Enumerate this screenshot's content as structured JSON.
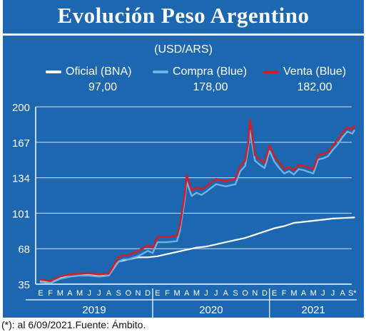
{
  "title": "Evolución Peso Argentino",
  "units": "(USD/ARS)",
  "footnote": "(*): al 6/09/2021.Fuente: Ámbito.",
  "legend": [
    {
      "label": "Oficial (BNA)",
      "value": "97,00",
      "color": "#ffffff"
    },
    {
      "label": "Compra (Blue)",
      "value": "178,00",
      "color": "#6cb3e4"
    },
    {
      "label": "Venta (Blue)",
      "value": "182,00",
      "color": "#d21f26"
    }
  ],
  "chart_data": {
    "type": "line",
    "x_unit": "month",
    "y_ticks": [
      "200",
      "167",
      "134",
      "101",
      "68",
      "35"
    ],
    "y_tick_values": [
      200,
      167,
      134,
      101,
      68,
      35
    ],
    "ylim": [
      35,
      200
    ],
    "grid": true,
    "month_labels": [
      "E",
      "F",
      "M",
      "A",
      "M",
      "J",
      "J",
      "A",
      "S",
      "O",
      "N",
      "D",
      "E",
      "F",
      "M",
      "A",
      "M",
      "J",
      "J",
      "A",
      "S",
      "O",
      "N",
      "D",
      "E",
      "F",
      "M",
      "A",
      "M",
      "J",
      "J",
      "A",
      "S*"
    ],
    "years": [
      "2019",
      "2020",
      "2021"
    ],
    "series": [
      {
        "name": "Oficial (BNA)",
        "color": "#ffffff",
        "x": [
          0,
          1,
          2,
          3,
          4,
          5,
          6,
          7,
          8,
          9,
          10,
          11,
          12,
          13,
          14,
          15,
          16,
          17,
          18,
          19,
          20,
          21,
          22,
          23,
          24,
          25,
          26,
          27,
          28,
          29,
          30,
          31,
          32.2
        ],
        "y": [
          38,
          38,
          41,
          44,
          45,
          44,
          43,
          45,
          56,
          58,
          60,
          60,
          61,
          63,
          65,
          67,
          69,
          70,
          72,
          74,
          76,
          78,
          81,
          84,
          87,
          89,
          92,
          93,
          94,
          95,
          96,
          96.5,
          97
        ]
      },
      {
        "name": "Compra (Blue)",
        "color": "#6cb3e4",
        "x": [
          0,
          1,
          2,
          3,
          4,
          5,
          6,
          7,
          8,
          8.5,
          9,
          10,
          11,
          11.5,
          12,
          13,
          14,
          14.3,
          14.8,
          15,
          15.5,
          16,
          16.5,
          17,
          18,
          19,
          20,
          20.5,
          21,
          21.3,
          21.5,
          22,
          22.5,
          23,
          23.5,
          24,
          24.5,
          25,
          25.5,
          26,
          26.5,
          27,
          28,
          28.5,
          29,
          29.5,
          30,
          30.5,
          31,
          31.5,
          32,
          32.2
        ],
        "y": [
          37,
          36,
          40,
          42,
          43,
          43,
          42,
          43,
          56,
          58,
          58,
          61,
          66,
          64,
          74,
          74,
          75,
          85,
          114,
          130,
          117,
          120,
          118,
          121,
          128,
          126,
          128,
          140,
          145,
          161,
          178,
          150,
          146,
          143,
          159,
          149,
          143,
          138,
          140,
          137,
          142,
          141,
          138,
          151,
          152,
          154,
          160,
          165,
          172,
          177,
          175,
          178
        ]
      },
      {
        "name": "Venta (Blue)",
        "color": "#d21f26",
        "x": [
          0,
          1,
          2,
          3,
          4,
          5,
          6,
          7,
          8,
          8.5,
          9,
          10,
          11,
          11.5,
          12,
          13,
          14,
          14.3,
          14.8,
          15,
          15.5,
          16,
          16.5,
          17,
          18,
          19,
          20,
          20.5,
          21,
          21.3,
          21.5,
          22,
          22.5,
          23,
          23.5,
          24,
          24.5,
          25,
          25.5,
          26,
          26.5,
          27,
          28,
          28.5,
          29,
          29.5,
          30,
          30.5,
          31,
          31.5,
          32,
          32.2
        ],
        "y": [
          39,
          38,
          42,
          44,
          45,
          45,
          44,
          45,
          60,
          62,
          62,
          66,
          71,
          69,
          79,
          79,
          80,
          90,
          119,
          136,
          122,
          125,
          123,
          126,
          133,
          131,
          133,
          145,
          150,
          166,
          188,
          155,
          151,
          148,
          164,
          154,
          148,
          142,
          144,
          141,
          146,
          145,
          142,
          155,
          156,
          158,
          164,
          169,
          176,
          181,
          179,
          182
        ]
      }
    ]
  }
}
